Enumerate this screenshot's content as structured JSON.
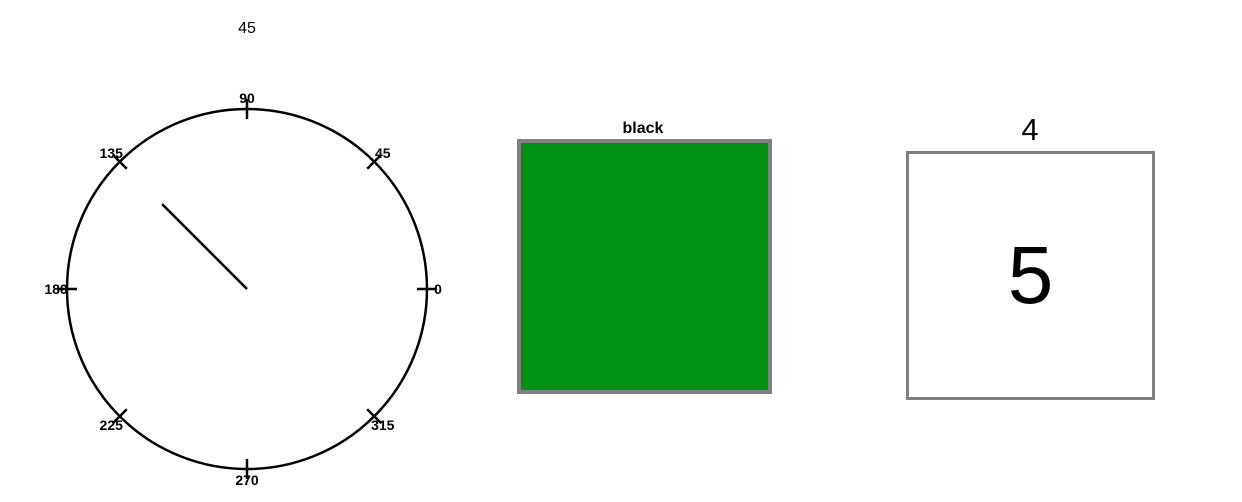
{
  "dial": {
    "value": "45",
    "needle_angle_deg": 135,
    "tick_labels": [
      "0",
      "45",
      "90",
      "135",
      "180",
      "225",
      "270",
      "315"
    ]
  },
  "color_card": {
    "label": "black",
    "fill_color": "#009014",
    "border_color": "#808080"
  },
  "number_card": {
    "label": "4",
    "value": "5",
    "border_color": "#808080"
  }
}
